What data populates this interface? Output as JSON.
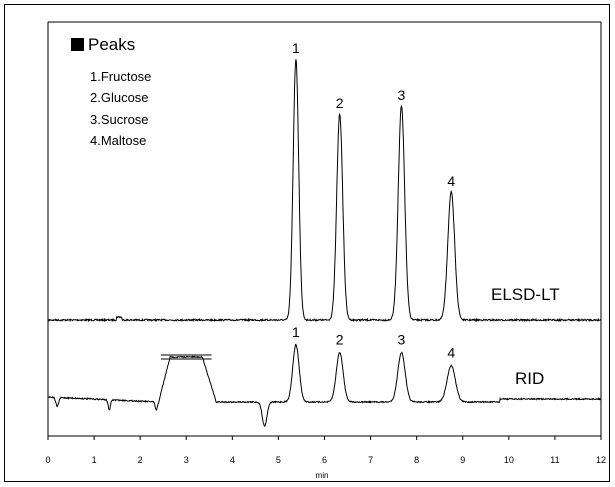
{
  "chart_data": {
    "type": "line",
    "xlabel": "min",
    "xlim": [
      0,
      12
    ],
    "x_ticks": [
      "0",
      "1",
      "2",
      "3",
      "4",
      "5",
      "6",
      "7",
      "8",
      "9",
      "10",
      "11",
      "12"
    ],
    "legend": {
      "title": "Peaks",
      "items": [
        "1.Fructose",
        "2.Glucose",
        "3.Sucrose",
        "4.Maltose"
      ]
    },
    "series": [
      {
        "name": "ELSD-LT",
        "baseline": 0,
        "peaks": [
          {
            "label": "1",
            "rt": 5.38,
            "height": 1.0,
            "width": 0.06
          },
          {
            "label": "2",
            "rt": 6.33,
            "height": 0.79,
            "width": 0.065
          },
          {
            "label": "3",
            "rt": 7.67,
            "height": 0.82,
            "width": 0.07
          },
          {
            "label": "4",
            "rt": 8.75,
            "height": 0.49,
            "width": 0.075
          }
        ]
      },
      {
        "name": "RID",
        "baseline": 0,
        "peaks": [
          {
            "label": "1",
            "rt": 5.38,
            "height": 0.22,
            "width": 0.07
          },
          {
            "label": "2",
            "rt": 6.33,
            "height": 0.19,
            "width": 0.075
          },
          {
            "label": "3",
            "rt": 7.67,
            "height": 0.19,
            "width": 0.08
          },
          {
            "label": "4",
            "rt": 8.75,
            "height": 0.14,
            "width": 0.09
          }
        ]
      }
    ]
  }
}
